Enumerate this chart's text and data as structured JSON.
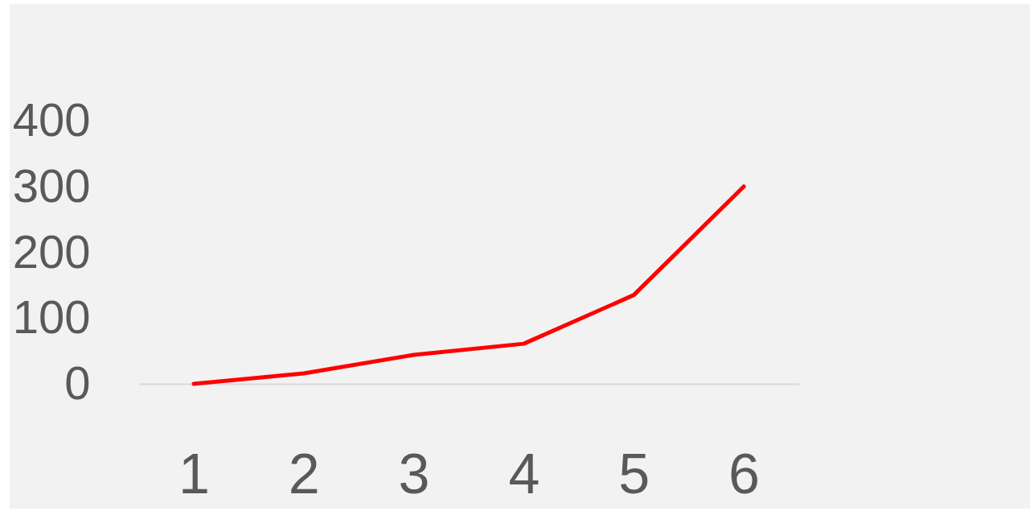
{
  "chart_data": {
    "type": "line",
    "categories": [
      "1",
      "2",
      "3",
      "4",
      "5",
      "6"
    ],
    "series": [
      {
        "color": "#ff0000",
        "values": [
          0,
          16,
          44,
          61,
          135,
          300
        ]
      }
    ],
    "ylim": [
      0,
      400
    ],
    "yticks": [
      0,
      100,
      200,
      300,
      400
    ]
  }
}
